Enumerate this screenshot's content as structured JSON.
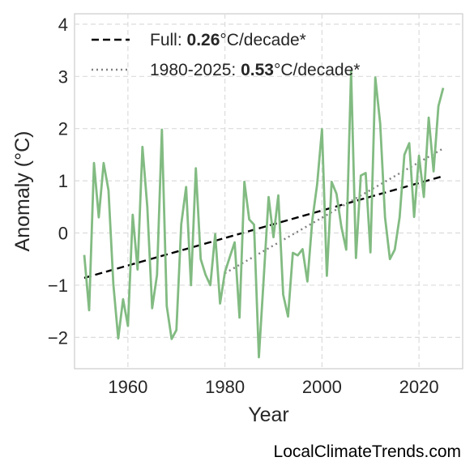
{
  "chart_data": {
    "type": "line",
    "xlabel": "Year",
    "ylabel": "Anomaly (°C)",
    "xlim": [
      1949,
      2029
    ],
    "ylim": [
      -2.6,
      4.2
    ],
    "xticks": [
      1960,
      1980,
      2000,
      2020
    ],
    "yticks": [
      4,
      3,
      2,
      1,
      0,
      -1,
      -2
    ],
    "ytick_labels": [
      "4",
      "3",
      "2",
      "1",
      "0",
      "−1",
      "−2"
    ],
    "grid": true,
    "legend_position": "top-left",
    "colors": {
      "series": "#82bb82",
      "full_trend": "#000000",
      "recent_trend": "#808080"
    },
    "series": [
      {
        "x": [
          1951,
          1952,
          1953,
          1954,
          1955,
          1956,
          1957,
          1958,
          1959,
          1960,
          1961,
          1962,
          1963,
          1964,
          1965,
          1966,
          1967,
          1968,
          1969,
          1970,
          1971,
          1972,
          1973,
          1974,
          1975,
          1976,
          1977,
          1978,
          1979,
          1980,
          1981,
          1982,
          1983,
          1984,
          1985,
          1986,
          1987,
          1988,
          1989,
          1990,
          1991,
          1992,
          1993,
          1994,
          1995,
          1996,
          1997,
          1998,
          1999,
          2000,
          2001,
          2002,
          2003,
          2004,
          2005,
          2006,
          2007,
          2008,
          2009,
          2010,
          2011,
          2012,
          2013,
          2014,
          2015,
          2016,
          2017,
          2018,
          2019,
          2020,
          2021,
          2022,
          2023,
          2024,
          2025
        ],
        "values": [
          -0.42,
          -1.48,
          1.34,
          0.3,
          1.34,
          0.82,
          -0.98,
          -2.02,
          -1.27,
          -1.78,
          0.35,
          -0.7,
          1.65,
          0.5,
          -1.44,
          -0.8,
          1.98,
          -1.4,
          -2.03,
          -1.86,
          0.17,
          0.88,
          -1.0,
          1.24,
          -0.5,
          -0.8,
          -1.0,
          -0.02,
          -1.35,
          -0.75,
          -0.46,
          -0.18,
          -1.62,
          0.98,
          0.26,
          0.16,
          -2.38,
          -0.86,
          0.69,
          -0.08,
          0.72,
          -1.18,
          -1.6,
          -0.38,
          -0.43,
          -0.31,
          -0.93,
          0.24,
          0.93,
          1.99,
          -0.82,
          0.98,
          0.75,
          0.12,
          -0.32,
          3.1,
          -0.48,
          1.1,
          1.15,
          -0.37,
          2.98,
          2.1,
          0.3,
          -0.5,
          -0.32,
          0.3,
          1.5,
          1.72,
          0.31,
          1.48,
          0.69,
          2.21,
          1.18,
          2.43,
          2.78
        ]
      }
    ],
    "trends": [
      {
        "label": "Full:",
        "rate": "0.26",
        "unit": "°C/decade*",
        "x": [
          1951,
          2025
        ],
        "y": [
          -0.86,
          1.09
        ]
      },
      {
        "label": "1980-2025:",
        "rate": "0.53",
        "unit": "°C/decade*",
        "x": [
          1980,
          2025
        ],
        "y": [
          -0.77,
          1.62
        ]
      }
    ]
  },
  "watermark": "LocalClimateTrends.com"
}
